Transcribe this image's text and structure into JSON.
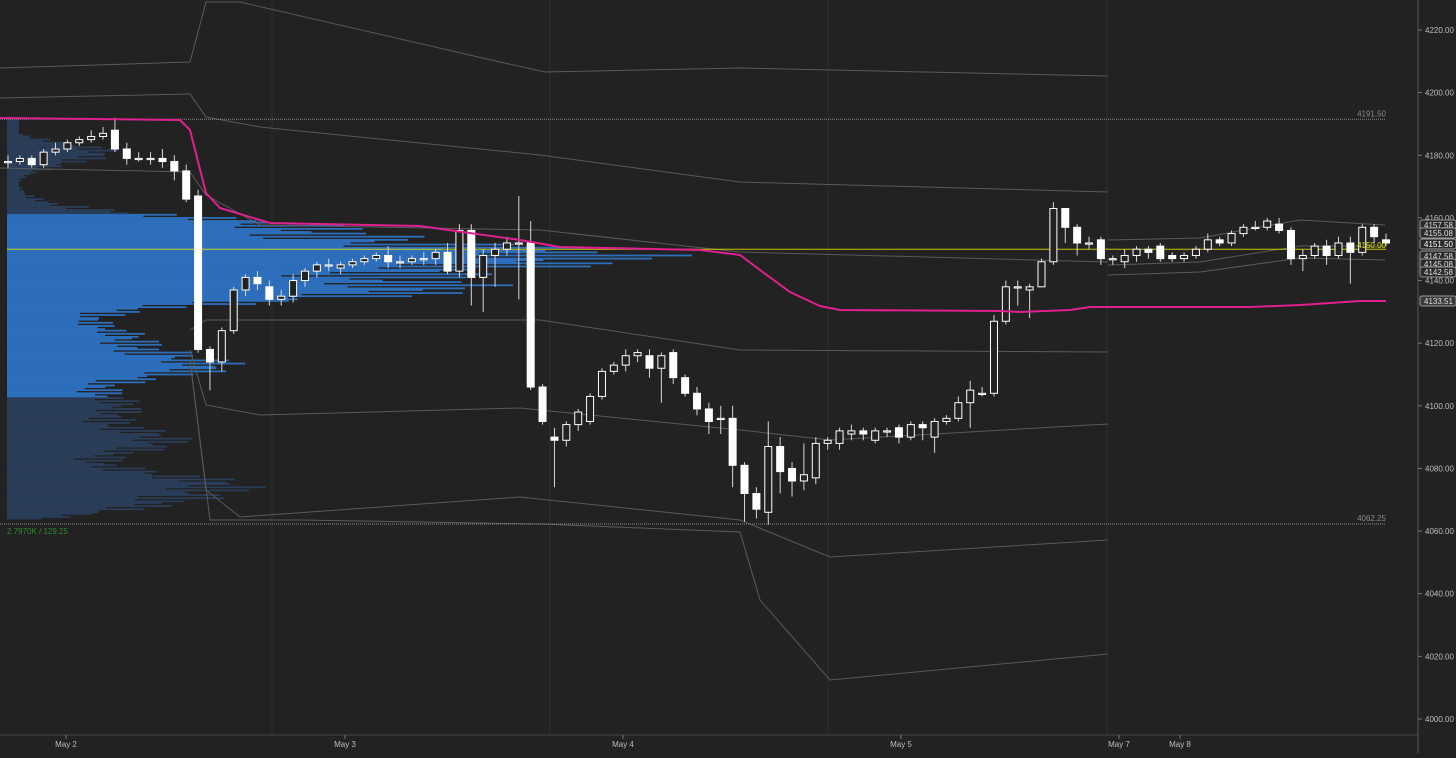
{
  "colors": {
    "background": "#222222",
    "grid": "#2e2e2e",
    "axis_text": "#bdbdbd",
    "candle_up": "#ffffff",
    "candle_down": "#ffffff",
    "wick": "#d8d8d8",
    "vwap": "#e0208f",
    "band": "#5a5a5a",
    "volume_profile_value_area": "#2e73c4",
    "volume_profile_outer": "#2b3f5c",
    "poc_line": "#e6e600",
    "level_line": "#8a8a8a",
    "profile_stats": "#2a8a2a"
  },
  "chart_data": {
    "type": "candlestick",
    "y_axis": {
      "ticks": [
        "4220.00",
        "4200.00",
        "4180.00",
        "4160.00",
        "4140.00",
        "4120.00",
        "4100.00",
        "4080.00",
        "4060.00",
        "4040.00",
        "4020.00",
        "4000.00"
      ],
      "range": [
        3994,
        4230
      ]
    },
    "x_axis": {
      "labels": [
        "May 2",
        "May 3",
        "May 4",
        "May 5",
        "May 7",
        "May 8"
      ]
    },
    "level_lines": [
      {
        "label": "4191.50",
        "value": 4191.5
      },
      {
        "label": "4062.25",
        "value": 4062.25
      }
    ],
    "poc": {
      "label": "4150.00",
      "value": 4150.0
    },
    "price_tags": [
      "4157.58",
      "4155.08",
      "4151.50",
      "4147.58",
      "4145.08",
      "4142.58",
      "4133.51"
    ],
    "volume_profile_stats": "2.7970K / 129.25",
    "candles": [
      [
        4178,
        4178,
        4180,
        4176
      ],
      [
        4178,
        4179,
        4180,
        4177
      ],
      [
        4179,
        4177,
        4180,
        4176
      ],
      [
        4177,
        4181,
        4182,
        4176
      ],
      [
        4181,
        4182,
        4184,
        4180
      ],
      [
        4182,
        4184,
        4185,
        4181
      ],
      [
        4184,
        4185,
        4186,
        4183
      ],
      [
        4185,
        4186,
        4188,
        4184
      ],
      [
        4186,
        4187,
        4189,
        4185
      ],
      [
        4188,
        4182,
        4192,
        4181
      ],
      [
        4182,
        4179,
        4184,
        4177
      ],
      [
        4179,
        4179,
        4181,
        4178
      ],
      [
        4179,
        4179,
        4181,
        4177
      ],
      [
        4179,
        4178,
        4182,
        4176
      ],
      [
        4178,
        4175,
        4180,
        4172
      ],
      [
        4175,
        4166,
        4177,
        4165
      ],
      [
        4167,
        4118,
        4169,
        4117
      ],
      [
        4118,
        4114,
        4119,
        4105
      ],
      [
        4114,
        4124,
        4125,
        4111
      ],
      [
        4124,
        4137,
        4138,
        4123
      ],
      [
        4137,
        4141,
        4142,
        4135
      ],
      [
        4141,
        4139,
        4143,
        4137
      ],
      [
        4138,
        4134,
        4140,
        4132
      ],
      [
        4134,
        4135,
        4137,
        4132
      ],
      [
        4135,
        4140,
        4142,
        4133
      ],
      [
        4140,
        4143,
        4144,
        4138
      ],
      [
        4143,
        4145,
        4146,
        4141
      ],
      [
        4145,
        4145,
        4147,
        4143
      ],
      [
        4144,
        4145,
        4146,
        4142
      ],
      [
        4145,
        4146,
        4147,
        4144
      ],
      [
        4146,
        4147,
        4148,
        4145
      ],
      [
        4147,
        4148,
        4149,
        4146
      ],
      [
        4148,
        4146,
        4151,
        4144
      ],
      [
        4146,
        4146,
        4148,
        4144
      ],
      [
        4146,
        4147,
        4148,
        4145
      ],
      [
        4147,
        4147,
        4149,
        4145
      ],
      [
        4147,
        4149,
        4150,
        4145
      ],
      [
        4149,
        4143,
        4152,
        4142
      ],
      [
        4143,
        4156,
        4158,
        4141
      ],
      [
        4156,
        4141,
        4158,
        4132
      ],
      [
        4141,
        4148,
        4150,
        4130
      ],
      [
        4148,
        4150,
        4152,
        4138
      ],
      [
        4150,
        4152,
        4154,
        4148
      ],
      [
        4152,
        4152,
        4167,
        4134
      ],
      [
        4152,
        4106,
        4159,
        4105
      ],
      [
        4106,
        4095,
        4107,
        4094
      ],
      [
        4090,
        4089,
        4093,
        4074
      ],
      [
        4089,
        4094,
        4095,
        4087
      ],
      [
        4094,
        4098,
        4099,
        4092
      ],
      [
        4095,
        4103,
        4104,
        4094
      ],
      [
        4103,
        4111,
        4112,
        4102
      ],
      [
        4111,
        4113,
        4114,
        4110
      ],
      [
        4113,
        4116,
        4118,
        4111
      ],
      [
        4116,
        4117,
        4118,
        4114
      ],
      [
        4116,
        4112,
        4118,
        4109
      ],
      [
        4112,
        4116,
        4117,
        4101
      ],
      [
        4117,
        4109,
        4118,
        4107
      ],
      [
        4109,
        4104,
        4110,
        4103
      ],
      [
        4104,
        4099,
        4106,
        4097
      ],
      [
        4099,
        4095,
        4101,
        4091
      ],
      [
        4096,
        4096,
        4100,
        4091
      ],
      [
        4096,
        4081,
        4100,
        4074
      ],
      [
        4081,
        4072,
        4082,
        4063
      ],
      [
        4072,
        4067,
        4074,
        4064
      ],
      [
        4066,
        4087,
        4095,
        4062
      ],
      [
        4087,
        4079,
        4090,
        4072
      ],
      [
        4080,
        4076,
        4082,
        4071
      ],
      [
        4076,
        4078,
        4088,
        4073
      ],
      [
        4077,
        4088,
        4090,
        4075
      ],
      [
        4088,
        4089,
        4090,
        4086
      ],
      [
        4088,
        4092,
        4093,
        4086
      ],
      [
        4091,
        4092,
        4094,
        4089
      ],
      [
        4092,
        4091,
        4093,
        4089
      ],
      [
        4089,
        4092,
        4093,
        4088
      ],
      [
        4092,
        4092,
        4093,
        4090
      ],
      [
        4093,
        4090,
        4094,
        4088
      ],
      [
        4090,
        4094,
        4095,
        4089
      ],
      [
        4094,
        4093,
        4095,
        4089
      ],
      [
        4090,
        4095,
        4096,
        4085
      ],
      [
        4095,
        4096,
        4097,
        4094
      ],
      [
        4096,
        4101,
        4103,
        4095
      ],
      [
        4101,
        4105,
        4108,
        4093
      ],
      [
        4104,
        4104,
        4106,
        4103
      ],
      [
        4104,
        4127,
        4129,
        4103
      ],
      [
        4127,
        4138,
        4140,
        4126
      ],
      [
        4138,
        4138,
        4140,
        4132
      ],
      [
        4137,
        4138,
        4139,
        4128
      ],
      [
        4138,
        4146,
        4147,
        4138
      ],
      [
        4146,
        4163,
        4165,
        4145
      ],
      [
        4163,
        4157,
        4163,
        4152
      ],
      [
        4157,
        4152,
        4158,
        4148
      ],
      [
        4152,
        4152,
        4154,
        4150
      ],
      [
        4153,
        4147,
        4154,
        4145
      ],
      [
        4147,
        4147,
        4148,
        4145
      ],
      [
        4146,
        4148,
        4150,
        4144
      ],
      [
        4148,
        4150,
        4151,
        4146
      ],
      [
        4150,
        4149,
        4151,
        4147
      ],
      [
        4151,
        4147,
        4152,
        4146
      ],
      [
        4148,
        4147,
        4149,
        4146
      ],
      [
        4147,
        4148,
        4149,
        4146
      ],
      [
        4148,
        4150,
        4151,
        4147
      ],
      [
        4150,
        4153,
        4155,
        4149
      ],
      [
        4153,
        4152,
        4154,
        4151
      ],
      [
        4152,
        4155,
        4156,
        4151
      ],
      [
        4155,
        4157,
        4158,
        4154
      ],
      [
        4157,
        4157,
        4159,
        4156
      ],
      [
        4157,
        4159,
        4160,
        4156
      ],
      [
        4158,
        4156,
        4160,
        4155
      ],
      [
        4156,
        4147,
        4157,
        4145
      ],
      [
        4147,
        4148,
        4150,
        4143
      ],
      [
        4148,
        4151,
        4152,
        4147
      ],
      [
        4151,
        4148,
        4153,
        4145
      ],
      [
        4148,
        4152,
        4154,
        4147
      ],
      [
        4152,
        4149,
        4154,
        4139
      ],
      [
        4149,
        4157,
        4158,
        4148
      ],
      [
        4157,
        4154,
        4158,
        4152
      ],
      [
        4153,
        4152,
        4155,
        4151
      ]
    ]
  }
}
